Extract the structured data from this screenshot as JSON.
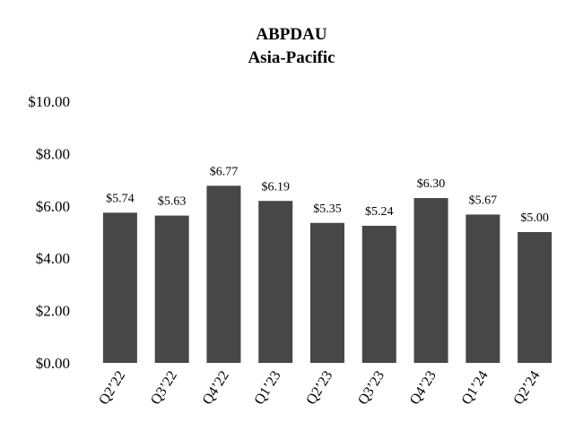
{
  "chart_data": {
    "type": "bar",
    "title": "ABPDAU",
    "subtitle": "Asia-Pacific",
    "xlabel": "",
    "ylabel": "",
    "categories": [
      "Q2’22",
      "Q3’22",
      "Q4’22",
      "Q1’23",
      "Q2’23",
      "Q3’23",
      "Q4’23",
      "Q1’24",
      "Q2’24"
    ],
    "values": [
      5.74,
      5.63,
      6.77,
      6.19,
      5.35,
      5.24,
      6.3,
      5.67,
      5.0
    ],
    "data_labels": [
      "$5.74",
      "$5.63",
      "$6.77",
      "$6.19",
      "$5.35",
      "$5.24",
      "$6.30",
      "$5.67",
      "$5.00"
    ],
    "ylim": [
      0,
      10
    ],
    "yticks": [
      0,
      2,
      4,
      6,
      8,
      10
    ],
    "ytick_labels": [
      "$0.00",
      "$2.00",
      "$4.00",
      "$6.00",
      "$8.00",
      "$10.00"
    ],
    "grid": false,
    "legend": "none",
    "bar_color": "#474747"
  }
}
